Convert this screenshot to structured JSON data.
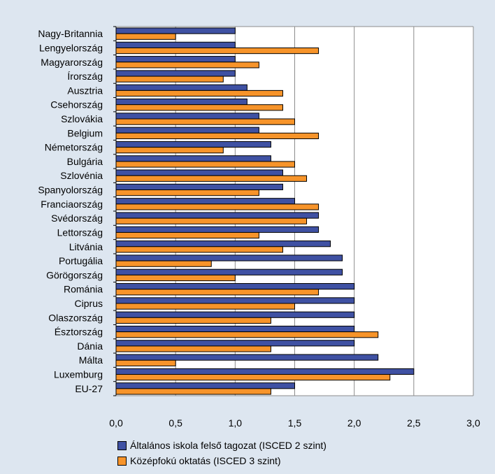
{
  "chart_data": {
    "type": "bar",
    "orientation": "horizontal",
    "categories": [
      "Nagy-Britannia",
      "Lengyelország",
      "Magyarország",
      "Írország",
      "Ausztria",
      "Csehország",
      "Szlovákia",
      "Belgium",
      "Németország",
      "Bulgária",
      "Szlovénia",
      "Spanyolország",
      "Franciaország",
      "Svédország",
      "Lettország",
      "Litvánia",
      "Portugália",
      "Görögország",
      "Románia",
      "Ciprus",
      "Olaszország",
      "Észtország",
      "Dánia",
      "Málta",
      "Luxemburg",
      "EU-27"
    ],
    "series": [
      {
        "name": "Általános iskola felső tagozat (ISCED 2 szint)",
        "color": "#3f51a3",
        "values": [
          1.0,
          1.0,
          1.0,
          1.0,
          1.1,
          1.1,
          1.2,
          1.2,
          1.3,
          1.3,
          1.4,
          1.4,
          1.5,
          1.7,
          1.7,
          1.8,
          1.9,
          1.9,
          2.0,
          2.0,
          2.0,
          2.0,
          2.0,
          2.2,
          2.5,
          1.5
        ]
      },
      {
        "name": "Középfokú oktatás (ISCED 3 szint)",
        "color": "#f7942a",
        "values": [
          0.5,
          1.7,
          1.2,
          0.9,
          1.4,
          1.4,
          1.5,
          1.7,
          0.9,
          1.5,
          1.6,
          1.2,
          1.7,
          1.6,
          1.2,
          1.4,
          0.8,
          1.0,
          1.7,
          1.5,
          1.3,
          2.2,
          1.3,
          0.5,
          2.3,
          1.3
        ]
      }
    ],
    "xlim": [
      0,
      3.0
    ],
    "ticks": [
      "0,0",
      "0,5",
      "1,0",
      "1,5",
      "2,0",
      "2,5",
      "3,0"
    ],
    "grid": true,
    "legend_position": "bottom"
  }
}
